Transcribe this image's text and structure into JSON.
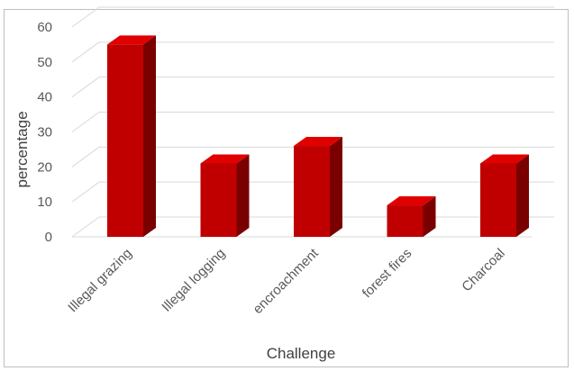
{
  "chart_data": {
    "type": "bar",
    "style": "3d-column",
    "categories": [
      "Illegal grazing",
      "Illegal logging",
      "encroachment",
      "forest fires",
      "Charcoal"
    ],
    "values": [
      55,
      21,
      26,
      9,
      21
    ],
    "xlabel": "Challenge",
    "ylabel": "percentage",
    "ylim": [
      0,
      60
    ],
    "yticks": [
      0,
      10,
      20,
      30,
      40,
      50,
      60
    ],
    "grid": true,
    "legend": "none",
    "colors": {
      "bar_front": "#c00000",
      "bar_side": "#7a0000",
      "bar_top": "#e00000",
      "grid": "#d9d9d9"
    }
  }
}
